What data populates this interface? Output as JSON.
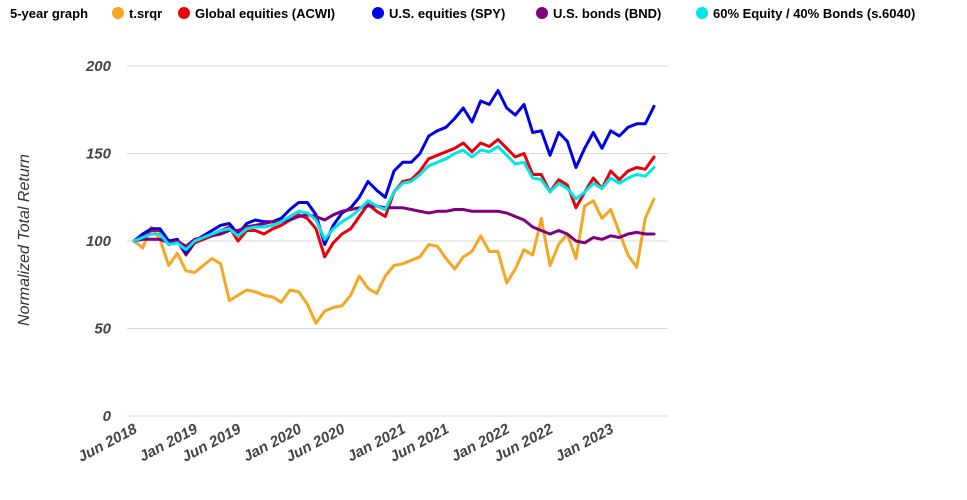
{
  "chart_data": {
    "type": "line",
    "legend_title": "5-year graph",
    "legend_placement": "top",
    "ylabel": "Normalized Total Return",
    "ylim": [
      0,
      200
    ],
    "yticks": [
      0,
      50,
      100,
      150,
      200
    ],
    "grid": "horizontal",
    "x_start": "2018-06",
    "x_end": "2023-04",
    "xtick_labels": [
      "Jun 2018",
      "Jan 2019",
      "Jun 2019",
      "Jan 2020",
      "Jun 2020",
      "Jan 2021",
      "Jun 2021",
      "Jan 2022",
      "Jun 2022",
      "Jan 2023"
    ],
    "series": [
      {
        "name": "t.srqr",
        "color": "#f5a623",
        "values": [
          100,
          96,
          108,
          101,
          86,
          93,
          83,
          82,
          86,
          90,
          87,
          66,
          69,
          72,
          71,
          69,
          68,
          65,
          72,
          71,
          64,
          53,
          60,
          62,
          63,
          69,
          80,
          73,
          70,
          80,
          86,
          87,
          89,
          91,
          98,
          97,
          90,
          84,
          91,
          94,
          103,
          94,
          94,
          76,
          84,
          95,
          92,
          113,
          86,
          98,
          104,
          90,
          120,
          123,
          113,
          118,
          105,
          92,
          85,
          113,
          124
        ]
      },
      {
        "name": "Global equities (ACWI)",
        "color": "#e8000b",
        "values": [
          100,
          103,
          106,
          106,
          98,
          100,
          92,
          99,
          101,
          103,
          106,
          108,
          100,
          106,
          106,
          104,
          107,
          109,
          112,
          115,
          113,
          107,
          91,
          99,
          104,
          107,
          114,
          121,
          117,
          114,
          128,
          134,
          135,
          140,
          147,
          149,
          151,
          153,
          156,
          151,
          156,
          154,
          158,
          153,
          148,
          150,
          138,
          138,
          128,
          135,
          132,
          119,
          128,
          136,
          130,
          140,
          135,
          140,
          142,
          141,
          148
        ]
      },
      {
        "name": "U.S. equities (SPY)",
        "color": "#0000e6",
        "values": [
          100,
          104,
          107,
          107,
          100,
          101,
          93,
          100,
          103,
          106,
          109,
          110,
          104,
          110,
          112,
          111,
          111,
          113,
          118,
          122,
          122,
          115,
          98,
          109,
          116,
          119,
          125,
          134,
          129,
          125,
          140,
          145,
          145,
          150,
          160,
          163,
          165,
          170,
          176,
          168,
          180,
          178,
          186,
          176,
          172,
          178,
          162,
          163,
          149,
          162,
          157,
          142,
          153,
          162,
          153,
          163,
          160,
          165,
          167,
          167,
          177
        ]
      },
      {
        "name": "U.S. bonds (BND)",
        "color": "#7f007f",
        "values": [
          100,
          101,
          101,
          101,
          99,
          100,
          97,
          101,
          102,
          103,
          104,
          106,
          106,
          108,
          109,
          110,
          111,
          111,
          112,
          114,
          115,
          114,
          112,
          115,
          117,
          118,
          119,
          120,
          120,
          119,
          119,
          119,
          118,
          117,
          116,
          117,
          117,
          118,
          118,
          117,
          117,
          117,
          117,
          116,
          114,
          112,
          108,
          106,
          104,
          106,
          104,
          100,
          99,
          102,
          101,
          103,
          102,
          104,
          105,
          104,
          104
        ]
      },
      {
        "name": "60% Equity / 40% Bonds (s.6040)",
        "color": "#00e6e6",
        "values": [
          100,
          102,
          104,
          104,
          98,
          99,
          95,
          100,
          102,
          104,
          106,
          107,
          103,
          107,
          108,
          108,
          109,
          111,
          114,
          117,
          116,
          112,
          101,
          107,
          111,
          114,
          118,
          123,
          120,
          118,
          128,
          133,
          134,
          138,
          143,
          145,
          147,
          150,
          152,
          148,
          152,
          151,
          154,
          149,
          144,
          145,
          136,
          135,
          128,
          133,
          130,
          124,
          128,
          133,
          130,
          136,
          133,
          136,
          138,
          137,
          142
        ]
      }
    ]
  }
}
